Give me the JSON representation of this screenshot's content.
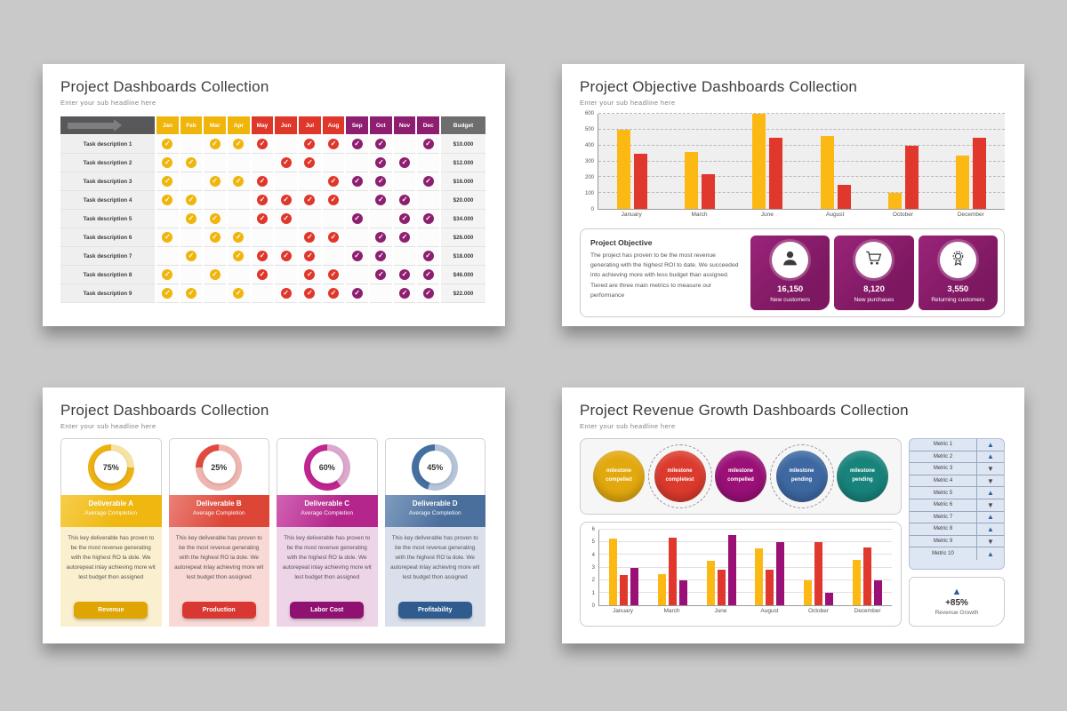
{
  "background": "#c9c9c9",
  "slide1": {
    "title": "Project Dashboards Collection",
    "subtitle": "Enter your sub headline here",
    "budget_label": "Budget",
    "months": [
      "Jan",
      "Feb",
      "Mar",
      "Apr",
      "May",
      "Jun",
      "Jul",
      "Aug",
      "Sep",
      "Oct",
      "Nov",
      "Dec"
    ],
    "month_colors": [
      "#F0B50A",
      "#F0B50A",
      "#F0B50A",
      "#F0B50A",
      "#E0372B",
      "#E0372B",
      "#E0372B",
      "#E0372B",
      "#8E1F70",
      "#8E1F70",
      "#8E1F70",
      "#8E1F70"
    ],
    "header_gray": "#6e6e6e",
    "rows": [
      {
        "label": "Task description 1",
        "checks": [
          1,
          0,
          1,
          1,
          1,
          0,
          1,
          1,
          1,
          1,
          0,
          1
        ],
        "budget": "$10.000"
      },
      {
        "label": "Task description 2",
        "checks": [
          1,
          1,
          0,
          0,
          0,
          1,
          1,
          0,
          0,
          1,
          1,
          0
        ],
        "budget": "$12.000"
      },
      {
        "label": "Task description 3",
        "checks": [
          1,
          0,
          1,
          1,
          1,
          0,
          0,
          1,
          1,
          1,
          0,
          1
        ],
        "budget": "$16.000"
      },
      {
        "label": "Task description 4",
        "checks": [
          1,
          1,
          0,
          0,
          1,
          1,
          1,
          1,
          0,
          1,
          1,
          0
        ],
        "budget": "$20.000"
      },
      {
        "label": "Task description 5",
        "checks": [
          0,
          1,
          1,
          0,
          1,
          1,
          0,
          0,
          1,
          0,
          1,
          1
        ],
        "budget": "$34.000"
      },
      {
        "label": "Task description 6",
        "checks": [
          1,
          0,
          1,
          1,
          0,
          0,
          1,
          1,
          0,
          1,
          1,
          0
        ],
        "budget": "$26.000"
      },
      {
        "label": "Task description 7",
        "checks": [
          0,
          1,
          0,
          1,
          1,
          1,
          1,
          0,
          1,
          1,
          0,
          1
        ],
        "budget": "$18.000"
      },
      {
        "label": "Task description 8",
        "checks": [
          1,
          0,
          1,
          0,
          1,
          0,
          1,
          1,
          0,
          1,
          1,
          1
        ],
        "budget": "$46.000"
      },
      {
        "label": "Task description 9",
        "checks": [
          1,
          1,
          0,
          1,
          0,
          1,
          1,
          1,
          1,
          0,
          1,
          1
        ],
        "budget": "$22.000"
      }
    ]
  },
  "slide2": {
    "title": "Project Objective Dashboards Collection",
    "subtitle": "Enter your sub headline here",
    "chart_data": {
      "type": "bar",
      "categories": [
        "January",
        "March",
        "June",
        "August",
        "October",
        "December"
      ],
      "series": [
        {
          "name": "series-yellow",
          "color": "#FDB913",
          "values": [
            500,
            360,
            600,
            460,
            100,
            335
          ]
        },
        {
          "name": "series-red",
          "color": "#E0382C",
          "values": [
            350,
            220,
            450,
            150,
            400,
            450
          ]
        }
      ],
      "ylim": [
        0,
        600
      ],
      "yticks": [
        0,
        100,
        200,
        300,
        400,
        500,
        600
      ],
      "grid": "dashed",
      "legend": "none"
    },
    "objective": {
      "heading": "Project Objective",
      "text": "The project has proven to be the most revenue generating with the highest ROI to date. We succeeded into achieving more with less budget than assigned. Tiered are three main metrics to measure our performance",
      "cards": [
        {
          "icon": "person-icon",
          "value": "16,150",
          "label": "New customers"
        },
        {
          "icon": "cart-icon",
          "value": "8,120",
          "label": "New purchases"
        },
        {
          "icon": "award-icon",
          "value": "3,550",
          "label": "Returning customers"
        }
      ]
    }
  },
  "slide3": {
    "title": "Project Dashboards Collection",
    "subtitle": "Enter your sub headline here",
    "body_text": "This key deliverable has proven to be the most revenue generating with the highest RO la dole. We autorepeat inlay achieving more wit lest budget thon assigned",
    "completion_sub": "Average Completion",
    "cards": [
      {
        "percent": 75,
        "name": "Deliverable A",
        "button": "Revenue",
        "dark": "#EDB111",
        "light": "#F6E2A2",
        "head_from": "#F6CE4B",
        "head_to": "#EFB70F",
        "tint": "#FAEFCF",
        "btn": "#DFA503"
      },
      {
        "percent": 25,
        "name": "Deliverable B",
        "button": "Production",
        "dark": "#E14B3F",
        "light": "#EFB6B1",
        "head_from": "#EA8177",
        "head_to": "#DD4537",
        "tint": "#F8D9D6",
        "btn": "#D93732"
      },
      {
        "percent": 60,
        "name": "Deliverable C",
        "button": "Labor Cost",
        "dark": "#C02590",
        "light": "#DDA7CE",
        "head_from": "#D163B4",
        "head_to": "#B5268C",
        "tint": "#EDD4E7",
        "btn": "#8F1170"
      },
      {
        "percent": 45,
        "name": "Deliverable D",
        "button": "Profitability",
        "dark": "#44709F",
        "light": "#B5C4D8",
        "head_from": "#7F9CBE",
        "head_to": "#4A6F9D",
        "tint": "#D9E0EB",
        "btn": "#2F5B8E"
      }
    ]
  },
  "slide4": {
    "title": "Project Revenue Growth Dashboards Collection",
    "subtitle": "Enter your sub headline here",
    "milestones": [
      {
        "label": "milestone compelled",
        "color": "#E2A80D",
        "ring": false
      },
      {
        "label": "milestone completest",
        "color": "#DC3A2D",
        "ring": true
      },
      {
        "label": "milestone compelled",
        "color": "#9A1077",
        "ring": false
      },
      {
        "label": "milestone pending",
        "color": "#3D68A2",
        "ring": true
      },
      {
        "label": "milestone pending",
        "color": "#17837A",
        "ring": false
      }
    ],
    "metrics": [
      {
        "label": "Metric 1",
        "dir": "up"
      },
      {
        "label": "Metric 2",
        "dir": "up"
      },
      {
        "label": "Metric 3",
        "dir": "down"
      },
      {
        "label": "Metric 4",
        "dir": "down"
      },
      {
        "label": "Metric 5",
        "dir": "up"
      },
      {
        "label": "Metric 6",
        "dir": "down"
      },
      {
        "label": "Metric 7",
        "dir": "up"
      },
      {
        "label": "Metric 8",
        "dir": "up"
      },
      {
        "label": "Metric 9",
        "dir": "down"
      },
      {
        "label": "Metric 10",
        "dir": "up"
      }
    ],
    "chart_data": {
      "type": "bar",
      "categories": [
        "January",
        "March",
        "June",
        "August",
        "October",
        "December"
      ],
      "series": [
        {
          "name": "series-yellow",
          "color": "#FDB913",
          "values": [
            5.3,
            2.5,
            3.5,
            4.5,
            2.0,
            3.6
          ]
        },
        {
          "name": "series-red",
          "color": "#E0382C",
          "values": [
            2.4,
            5.4,
            2.8,
            2.8,
            5.0,
            4.6
          ]
        },
        {
          "name": "series-purple",
          "color": "#9A1077",
          "values": [
            3.0,
            2.0,
            5.6,
            5.0,
            1.0,
            2.0
          ]
        }
      ],
      "ylim": [
        0,
        6
      ],
      "yticks": [
        0,
        1,
        2,
        3,
        4,
        5,
        6
      ],
      "grid": "solid",
      "legend": "none"
    },
    "growth": {
      "value": "+85%",
      "label": "Revenue Growth"
    }
  }
}
